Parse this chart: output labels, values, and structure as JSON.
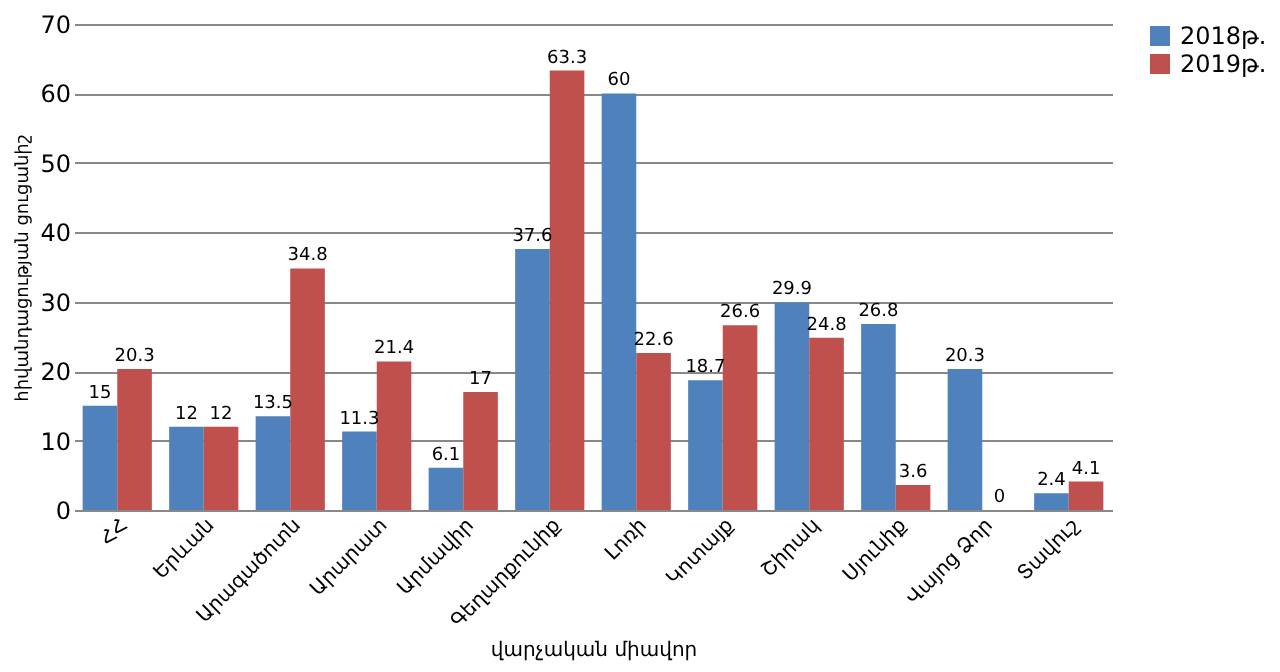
{
  "chart_data": {
    "type": "bar",
    "xlabel": "վարչական միավոր",
    "ylabel": "հիվանդացության ցուցանիշ",
    "categories": [
      "ՀՀ",
      "Երևան",
      "Արագածոտն",
      "Արարատ",
      "Արմավիր",
      "Գեղարքունիք",
      "Լոռի",
      "Կոտայք",
      "Շիրակ",
      "Սյունիք",
      "Վայոց Ձոր",
      "Տավուշ"
    ],
    "series": [
      {
        "name": "2018թ.",
        "color": "#4f81bd",
        "values": [
          15,
          12,
          13.5,
          11.3,
          6.1,
          37.6,
          60,
          18.7,
          29.9,
          26.8,
          20.3,
          2.4
        ]
      },
      {
        "name": "2019թ.",
        "color": "#c0504d",
        "values": [
          20.3,
          12,
          34.8,
          21.4,
          17,
          63.3,
          22.6,
          26.6,
          24.8,
          3.6,
          0,
          4.1
        ]
      }
    ],
    "ylim": [
      0,
      70
    ],
    "yticks": [
      0,
      10,
      20,
      30,
      40,
      50,
      60,
      70
    ],
    "grid": "y",
    "legend": "right",
    "data_labels": true
  }
}
